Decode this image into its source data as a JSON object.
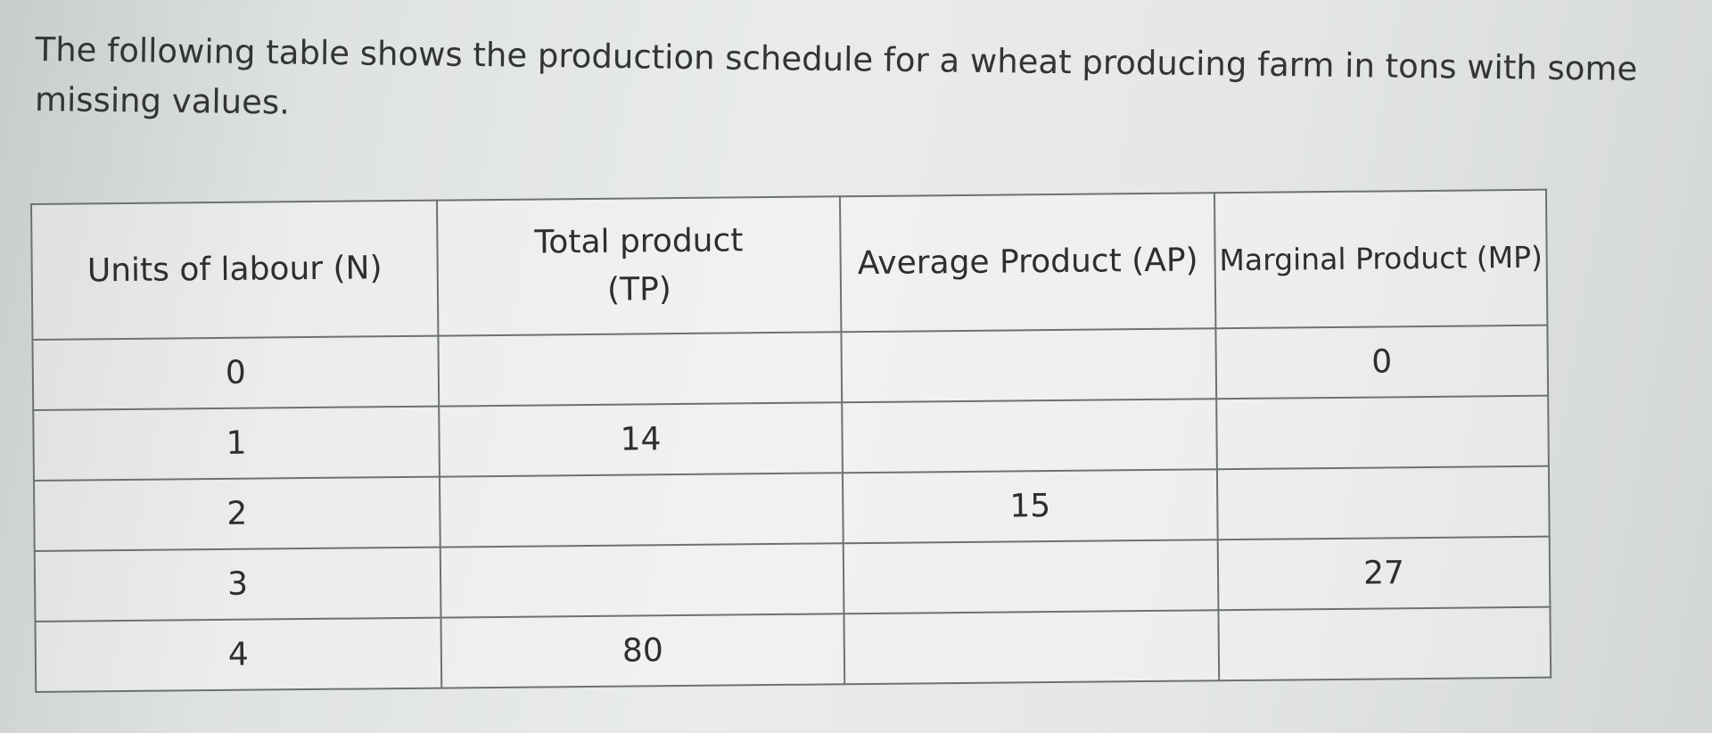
{
  "question": {
    "text": "The following table shows the production schedule for a wheat producing farm in tons with some missing values."
  },
  "table": {
    "headers": {
      "labour": "Units of labour (N)",
      "tp_line1": "Total product",
      "tp_line2": "(TP)",
      "ap": "Average Product (AP)",
      "mp": "Marginal Product (MP)"
    },
    "rows": [
      {
        "labour": "0",
        "tp": "",
        "ap": "",
        "mp": "0"
      },
      {
        "labour": "1",
        "tp": "14",
        "ap": "",
        "mp": ""
      },
      {
        "labour": "2",
        "tp": "",
        "ap": "15",
        "mp": ""
      },
      {
        "labour": "3",
        "tp": "",
        "ap": "",
        "mp": "27"
      },
      {
        "labour": "4",
        "tp": "80",
        "ap": "",
        "mp": ""
      }
    ]
  }
}
